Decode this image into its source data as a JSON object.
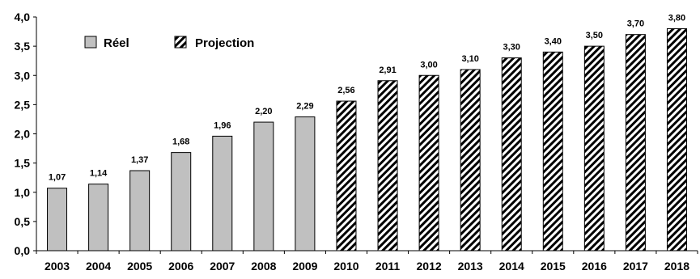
{
  "chart_data": {
    "type": "bar",
    "categories": [
      "2003",
      "2004",
      "2005",
      "2006",
      "2007",
      "2008",
      "2009",
      "2010",
      "2011",
      "2012",
      "2013",
      "2014",
      "2015",
      "2016",
      "2017",
      "2018"
    ],
    "series": [
      {
        "name": "Réel",
        "color": "#c0c0c0",
        "pattern": "solid",
        "values": [
          1.07,
          1.14,
          1.37,
          1.68,
          1.96,
          2.2,
          2.29,
          null,
          null,
          null,
          null,
          null,
          null,
          null,
          null,
          null
        ],
        "labels": [
          "1,07",
          "1,14",
          "1,37",
          "1,68",
          "1,96",
          "2,20",
          "2,29",
          null,
          null,
          null,
          null,
          null,
          null,
          null,
          null,
          null
        ]
      },
      {
        "name": "Projection",
        "color": "#000000",
        "pattern": "diagonal-hatch",
        "values": [
          null,
          null,
          null,
          null,
          null,
          null,
          null,
          2.56,
          2.91,
          3.0,
          3.1,
          3.3,
          3.4,
          3.5,
          3.7,
          3.8
        ],
        "labels": [
          null,
          null,
          null,
          null,
          null,
          null,
          null,
          "2,56",
          "2,91",
          "3,00",
          "3,10",
          "3,30",
          "3,40",
          "3,50",
          "3,70",
          "3,80"
        ]
      }
    ],
    "y_ticks": [
      "0,0",
      "0,5",
      "1,0",
      "1,5",
      "2,0",
      "2,5",
      "3,0",
      "3,5",
      "4,0"
    ],
    "ylim": [
      0,
      4.0
    ],
    "title": "",
    "xlabel": "",
    "ylabel": "",
    "grid": false,
    "legend_position": "top-left"
  }
}
